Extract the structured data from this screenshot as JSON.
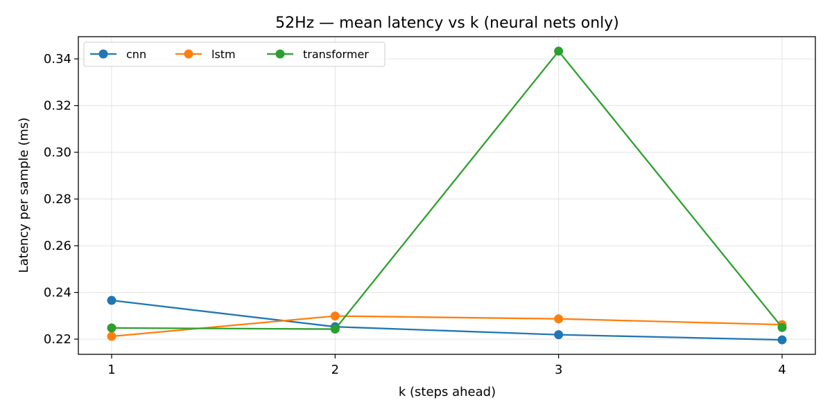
{
  "chart_data": {
    "type": "line",
    "title": "52Hz — mean latency vs k (neural nets only)",
    "xlabel": "k (steps ahead)",
    "ylabel": "Latency per sample (ms)",
    "x": [
      1,
      2,
      3,
      4
    ],
    "xticks": [
      "1",
      "2",
      "3",
      "4"
    ],
    "yticks": [
      "0.22",
      "0.24",
      "0.26",
      "0.28",
      "0.30",
      "0.32",
      "0.34"
    ],
    "ylim": [
      0.2135,
      0.3495
    ],
    "grid": true,
    "legend_position": "top-left",
    "series": [
      {
        "name": "cnn",
        "color": "#1f77b4",
        "values": [
          0.2366,
          0.2253,
          0.2219,
          0.2197
        ]
      },
      {
        "name": "lstm",
        "color": "#ff7f0e",
        "values": [
          0.2212,
          0.2299,
          0.2287,
          0.2262
        ]
      },
      {
        "name": "transformer",
        "color": "#2ca02c",
        "values": [
          0.2248,
          0.2243,
          0.3433,
          0.225
        ]
      }
    ]
  }
}
